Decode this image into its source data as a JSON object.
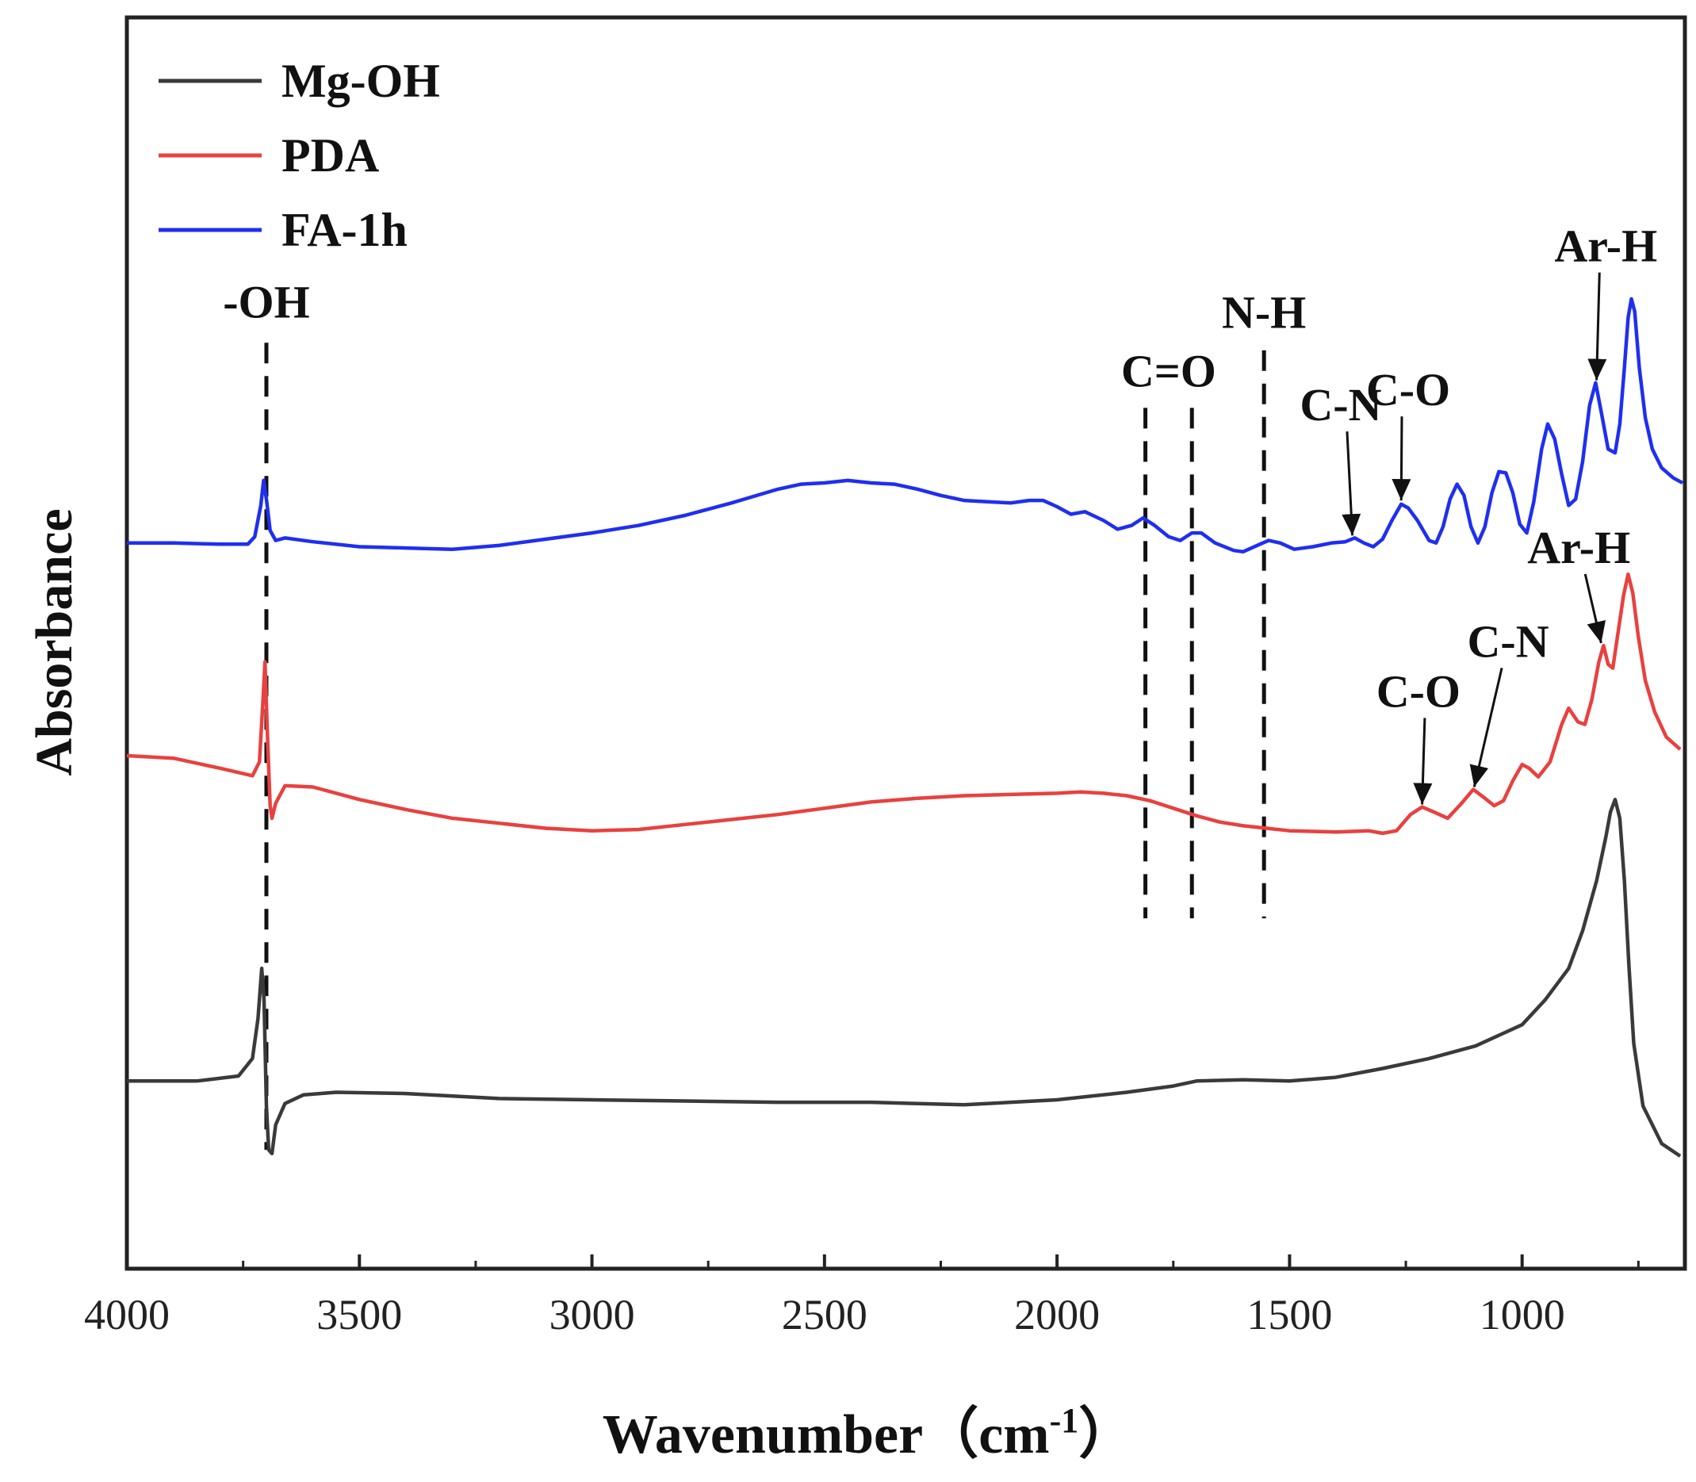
{
  "chart_data": {
    "type": "line",
    "title": "",
    "xlabel": "Wavenumber（cm",
    "xlabel_sup": "-1",
    "xlabel_close": "）",
    "ylabel": "Absorbance",
    "xlim": [
      4000,
      650
    ],
    "ylim": [
      0,
      100
    ],
    "x_reversed": true,
    "grid": false,
    "legend_position": "top-left",
    "yticks_visible": false,
    "xticks": [
      {
        "value": 4000,
        "label": "4000"
      },
      {
        "value": 3500,
        "label": "3500"
      },
      {
        "value": 3000,
        "label": "3000"
      },
      {
        "value": 2500,
        "label": "2500"
      },
      {
        "value": 2000,
        "label": "2000"
      },
      {
        "value": 1500,
        "label": "1500"
      },
      {
        "value": 1000,
        "label": "1000"
      }
    ],
    "series": [
      {
        "name": "Mg-OH",
        "color": "#3a3a3a",
        "points": [
          [
            4000,
            15.0
          ],
          [
            3850,
            15.0
          ],
          [
            3760,
            15.4
          ],
          [
            3730,
            16.8
          ],
          [
            3718,
            20.0
          ],
          [
            3710,
            24.0
          ],
          [
            3705,
            21.5
          ],
          [
            3700,
            13.0
          ],
          [
            3695,
            9.5
          ],
          [
            3688,
            9.2
          ],
          [
            3680,
            11.5
          ],
          [
            3660,
            13.2
          ],
          [
            3620,
            13.9
          ],
          [
            3550,
            14.1
          ],
          [
            3400,
            14.0
          ],
          [
            3200,
            13.6
          ],
          [
            3000,
            13.5
          ],
          [
            2800,
            13.4
          ],
          [
            2600,
            13.3
          ],
          [
            2400,
            13.3
          ],
          [
            2200,
            13.1
          ],
          [
            2000,
            13.5
          ],
          [
            1850,
            14.1
          ],
          [
            1750,
            14.6
          ],
          [
            1700,
            15.0
          ],
          [
            1600,
            15.1
          ],
          [
            1500,
            15.0
          ],
          [
            1400,
            15.3
          ],
          [
            1300,
            16.0
          ],
          [
            1200,
            16.8
          ],
          [
            1100,
            17.8
          ],
          [
            1000,
            19.5
          ],
          [
            950,
            21.5
          ],
          [
            900,
            24.0
          ],
          [
            870,
            27.0
          ],
          [
            840,
            31.0
          ],
          [
            820,
            34.5
          ],
          [
            810,
            36.5
          ],
          [
            800,
            37.5
          ],
          [
            790,
            36.0
          ],
          [
            780,
            31.0
          ],
          [
            770,
            24.0
          ],
          [
            760,
            18.0
          ],
          [
            740,
            13.0
          ],
          [
            700,
            10.0
          ],
          [
            660,
            9.0
          ]
        ]
      },
      {
        "name": "PDA",
        "color": "#e8413f",
        "points": [
          [
            4000,
            41.0
          ],
          [
            3900,
            40.8
          ],
          [
            3800,
            40.0
          ],
          [
            3730,
            39.4
          ],
          [
            3715,
            40.5
          ],
          [
            3708,
            45.0
          ],
          [
            3703,
            48.5
          ],
          [
            3698,
            43.0
          ],
          [
            3692,
            37.0
          ],
          [
            3688,
            36.0
          ],
          [
            3680,
            37.2
          ],
          [
            3660,
            38.6
          ],
          [
            3600,
            38.5
          ],
          [
            3500,
            37.5
          ],
          [
            3400,
            36.7
          ],
          [
            3300,
            36.0
          ],
          [
            3200,
            35.6
          ],
          [
            3100,
            35.2
          ],
          [
            3000,
            35.0
          ],
          [
            2900,
            35.1
          ],
          [
            2800,
            35.5
          ],
          [
            2700,
            35.9
          ],
          [
            2600,
            36.3
          ],
          [
            2500,
            36.8
          ],
          [
            2400,
            37.3
          ],
          [
            2300,
            37.6
          ],
          [
            2200,
            37.8
          ],
          [
            2100,
            37.9
          ],
          [
            2000,
            38.0
          ],
          [
            1950,
            38.1
          ],
          [
            1900,
            38.0
          ],
          [
            1850,
            37.8
          ],
          [
            1800,
            37.4
          ],
          [
            1750,
            36.8
          ],
          [
            1700,
            36.2
          ],
          [
            1650,
            35.7
          ],
          [
            1600,
            35.4
          ],
          [
            1550,
            35.2
          ],
          [
            1500,
            35.0
          ],
          [
            1400,
            34.9
          ],
          [
            1330,
            35.0
          ],
          [
            1300,
            34.8
          ],
          [
            1270,
            35.0
          ],
          [
            1240,
            36.3
          ],
          [
            1215,
            36.9
          ],
          [
            1190,
            36.5
          ],
          [
            1160,
            36.0
          ],
          [
            1130,
            37.2
          ],
          [
            1105,
            38.3
          ],
          [
            1080,
            37.6
          ],
          [
            1060,
            37.0
          ],
          [
            1040,
            37.4
          ],
          [
            1020,
            39.0
          ],
          [
            1000,
            40.3
          ],
          [
            985,
            40.0
          ],
          [
            965,
            39.3
          ],
          [
            940,
            40.5
          ],
          [
            915,
            43.5
          ],
          [
            900,
            44.8
          ],
          [
            880,
            43.7
          ],
          [
            865,
            43.5
          ],
          [
            850,
            45.5
          ],
          [
            835,
            48.5
          ],
          [
            825,
            49.8
          ],
          [
            815,
            48.3
          ],
          [
            805,
            48.0
          ],
          [
            795,
            50.5
          ],
          [
            782,
            53.8
          ],
          [
            772,
            55.5
          ],
          [
            762,
            54.0
          ],
          [
            750,
            50.5
          ],
          [
            735,
            47.0
          ],
          [
            715,
            44.5
          ],
          [
            690,
            42.5
          ],
          [
            660,
            41.5
          ]
        ]
      },
      {
        "name": "FA-1h",
        "color": "#1f2ff0",
        "points": [
          [
            4000,
            58.0
          ],
          [
            3900,
            58.0
          ],
          [
            3800,
            57.9
          ],
          [
            3740,
            57.9
          ],
          [
            3725,
            58.5
          ],
          [
            3712,
            61.0
          ],
          [
            3706,
            63.0
          ],
          [
            3700,
            61.5
          ],
          [
            3692,
            59.0
          ],
          [
            3680,
            58.2
          ],
          [
            3660,
            58.4
          ],
          [
            3600,
            58.1
          ],
          [
            3500,
            57.7
          ],
          [
            3400,
            57.6
          ],
          [
            3300,
            57.5
          ],
          [
            3200,
            57.8
          ],
          [
            3100,
            58.3
          ],
          [
            3000,
            58.8
          ],
          [
            2900,
            59.4
          ],
          [
            2800,
            60.2
          ],
          [
            2700,
            61.2
          ],
          [
            2600,
            62.3
          ],
          [
            2550,
            62.7
          ],
          [
            2500,
            62.8
          ],
          [
            2450,
            63.0
          ],
          [
            2400,
            62.8
          ],
          [
            2350,
            62.7
          ],
          [
            2300,
            62.3
          ],
          [
            2250,
            61.8
          ],
          [
            2200,
            61.4
          ],
          [
            2150,
            61.3
          ],
          [
            2100,
            61.2
          ],
          [
            2060,
            61.4
          ],
          [
            2030,
            61.4
          ],
          [
            2000,
            60.9
          ],
          [
            1970,
            60.3
          ],
          [
            1940,
            60.5
          ],
          [
            1900,
            59.8
          ],
          [
            1870,
            59.1
          ],
          [
            1840,
            59.4
          ],
          [
            1815,
            60.0
          ],
          [
            1790,
            59.4
          ],
          [
            1760,
            58.5
          ],
          [
            1735,
            58.2
          ],
          [
            1710,
            58.8
          ],
          [
            1690,
            58.8
          ],
          [
            1660,
            58.0
          ],
          [
            1620,
            57.4
          ],
          [
            1600,
            57.3
          ],
          [
            1570,
            57.8
          ],
          [
            1545,
            58.2
          ],
          [
            1520,
            58.0
          ],
          [
            1490,
            57.5
          ],
          [
            1450,
            57.7
          ],
          [
            1410,
            58.0
          ],
          [
            1380,
            58.1
          ],
          [
            1360,
            58.4
          ],
          [
            1340,
            58.0
          ],
          [
            1320,
            57.7
          ],
          [
            1300,
            58.3
          ],
          [
            1280,
            59.8
          ],
          [
            1260,
            61.1
          ],
          [
            1245,
            60.8
          ],
          [
            1225,
            59.8
          ],
          [
            1200,
            58.2
          ],
          [
            1185,
            58.0
          ],
          [
            1170,
            59.3
          ],
          [
            1155,
            61.5
          ],
          [
            1140,
            62.7
          ],
          [
            1125,
            61.8
          ],
          [
            1110,
            59.3
          ],
          [
            1095,
            58.0
          ],
          [
            1080,
            59.3
          ],
          [
            1065,
            62.0
          ],
          [
            1050,
            63.7
          ],
          [
            1035,
            63.6
          ],
          [
            1020,
            62.0
          ],
          [
            1005,
            59.5
          ],
          [
            990,
            58.8
          ],
          [
            975,
            61.3
          ],
          [
            958,
            65.5
          ],
          [
            945,
            67.5
          ],
          [
            930,
            66.3
          ],
          [
            915,
            63.5
          ],
          [
            900,
            61.0
          ],
          [
            885,
            61.5
          ],
          [
            870,
            64.5
          ],
          [
            855,
            69.0
          ],
          [
            842,
            70.8
          ],
          [
            830,
            68.5
          ],
          [
            815,
            65.5
          ],
          [
            800,
            65.2
          ],
          [
            790,
            67.5
          ],
          [
            780,
            72.0
          ],
          [
            772,
            76.0
          ],
          [
            765,
            77.5
          ],
          [
            758,
            76.5
          ],
          [
            748,
            72.0
          ],
          [
            735,
            68.0
          ],
          [
            720,
            65.5
          ],
          [
            700,
            64.0
          ],
          [
            675,
            63.2
          ],
          [
            655,
            62.8
          ]
        ]
      }
    ],
    "reference_lines": [
      {
        "x": 3700,
        "y_top": 74.0,
        "y_bottom": 9.5
      },
      {
        "x": 1810,
        "y_top": 68.8,
        "y_bottom": 28.0
      },
      {
        "x": 1710,
        "y_top": 68.8,
        "y_bottom": 28.0
      },
      {
        "x": 1555,
        "y_top": 73.4,
        "y_bottom": 28.0
      }
    ],
    "annotations": [
      {
        "text": "-OH",
        "x": 3700,
        "y": 76.0,
        "anchor": "middle"
      },
      {
        "text": "C=O",
        "x": 1760,
        "y": 70.5,
        "anchor": "middle"
      },
      {
        "text": "N-H",
        "x": 1555,
        "y": 75.2,
        "anchor": "middle"
      },
      {
        "text": "C-N",
        "x": 1390,
        "y": 67.8,
        "anchor": "middle",
        "arrow_to": [
          1365,
          58.6
        ]
      },
      {
        "text": "C-O",
        "x": 1245,
        "y": 69.0,
        "anchor": "middle",
        "arrow_to": [
          1260,
          61.4
        ]
      },
      {
        "text": "Ar-H",
        "x": 820,
        "y": 80.5,
        "anchor": "middle",
        "arrow_to": [
          840,
          71.0
        ]
      },
      {
        "text": "Ar-H",
        "x": 878,
        "y": 56.4,
        "anchor": "middle",
        "arrow_to": [
          830,
          50.0
        ]
      },
      {
        "text": "C-N",
        "x": 1030,
        "y": 48.9,
        "anchor": "middle",
        "arrow_to": [
          1103,
          38.5
        ]
      },
      {
        "text": "C-O",
        "x": 1223,
        "y": 44.9,
        "anchor": "middle",
        "arrow_to": [
          1215,
          37.1
        ]
      }
    ]
  }
}
